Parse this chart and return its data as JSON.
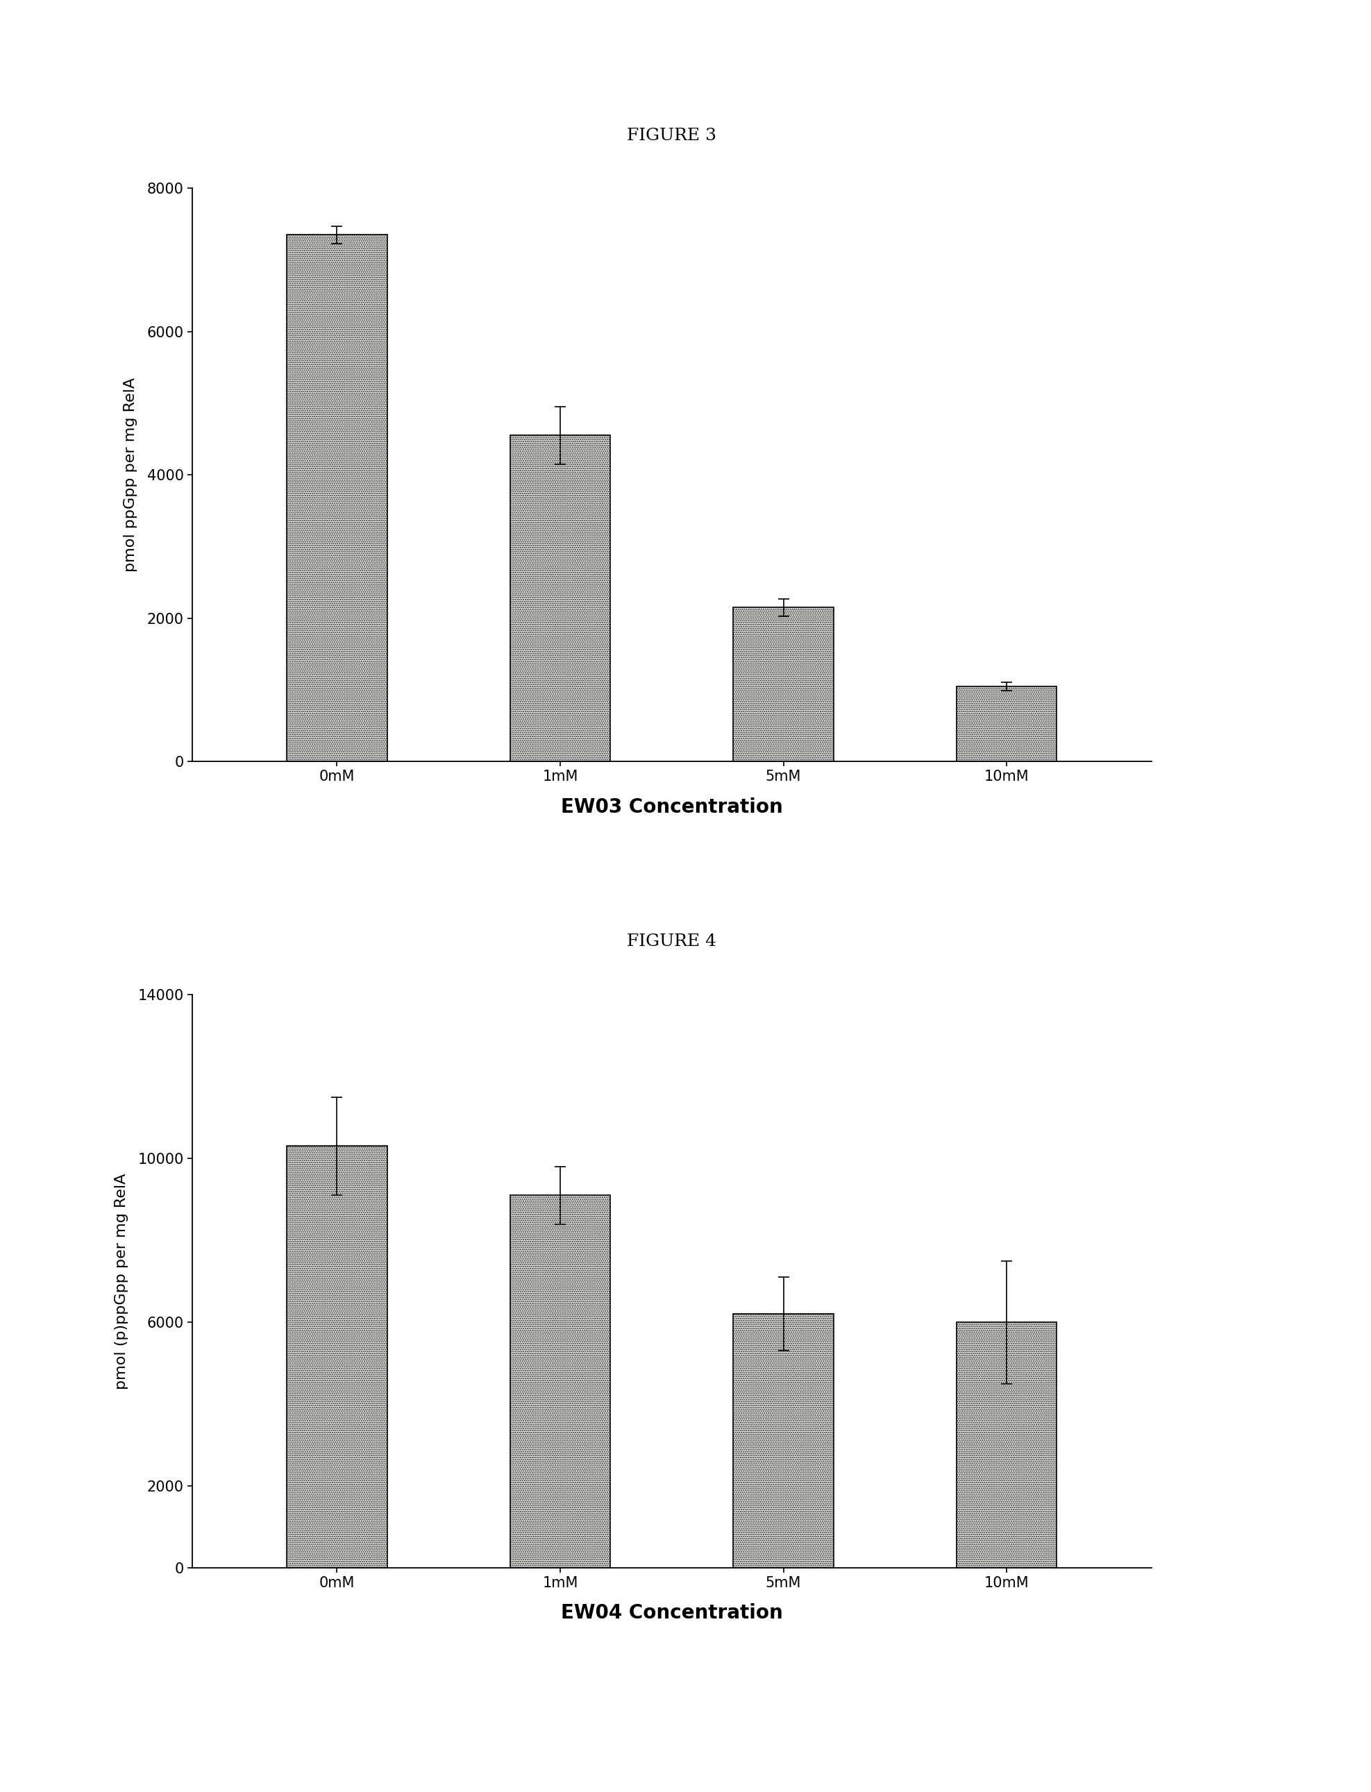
{
  "fig3": {
    "title": "FIGURE 3",
    "categories": [
      "0mM",
      "1mM",
      "5mM",
      "10mM"
    ],
    "values": [
      7350,
      4550,
      2150,
      1050
    ],
    "errors": [
      120,
      400,
      120,
      60
    ],
    "ylabel": "pmol ppGpp per mg RelA",
    "xlabel": "EW03 Concentration",
    "ylim": [
      0,
      8000
    ],
    "yticks": [
      0,
      2000,
      4000,
      6000,
      8000
    ],
    "bar_color": "#f0efea",
    "bar_edge_color": "#111111",
    "bar_width": 0.45
  },
  "fig4": {
    "title": "FIGURE 4",
    "categories": [
      "0mM",
      "1mM",
      "5mM",
      "10mM"
    ],
    "values": [
      10300,
      9100,
      6200,
      6000
    ],
    "errors": [
      1200,
      700,
      900,
      1500
    ],
    "ylabel": "pmol (p)ppGpp per mg RelA",
    "xlabel": "EW04 Concentration",
    "ylim": [
      0,
      14000
    ],
    "yticks": [
      0,
      2000,
      6000,
      10000,
      14000
    ],
    "bar_color": "#f0efea",
    "bar_edge_color": "#111111",
    "bar_width": 0.45
  },
  "figure_bg": "#ffffff",
  "title_fontsize": 18,
  "label_fontsize": 16,
  "tick_fontsize": 15,
  "xlabel_fontsize": 20,
  "xlabel_fontweight": "bold"
}
